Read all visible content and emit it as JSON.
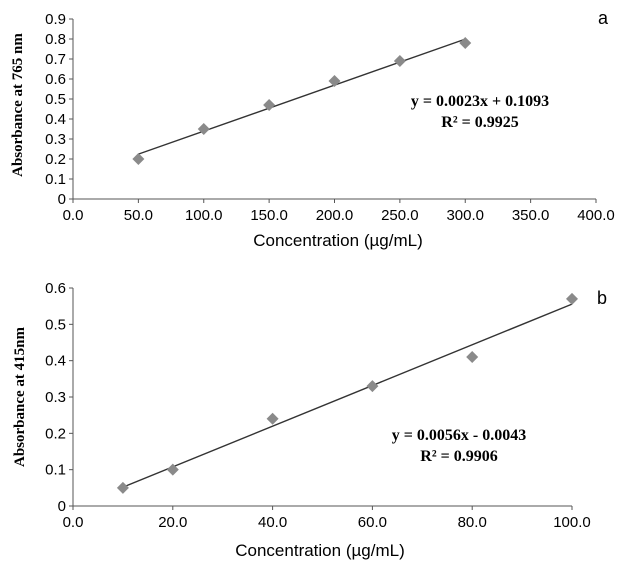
{
  "chart_data": [
    {
      "type": "scatter",
      "panel_label": "a",
      "xlabel": "Concentration (µg/mL)",
      "ylabel": "Absorbance at 765 nm",
      "xlim": [
        0,
        400
      ],
      "ylim": [
        0,
        0.9
      ],
      "x_ticks": [
        0,
        50,
        100,
        150,
        200,
        250,
        300,
        350,
        400
      ],
      "y_ticks": [
        0,
        0.1,
        0.2,
        0.3,
        0.4,
        0.5,
        0.6,
        0.7,
        0.8,
        0.9
      ],
      "x_tick_labels": [
        "0.0",
        "50.0",
        "100.0",
        "150.0",
        "200.0",
        "250.0",
        "300.0",
        "350.0",
        "400.0"
      ],
      "y_tick_labels": [
        "0",
        "0.1",
        "0.2",
        "0.3",
        "0.4",
        "0.5",
        "0.6",
        "0.7",
        "0.8",
        "0.9"
      ],
      "points": [
        {
          "x": 50,
          "y": 0.2
        },
        {
          "x": 100,
          "y": 0.35
        },
        {
          "x": 150,
          "y": 0.47
        },
        {
          "x": 200,
          "y": 0.59
        },
        {
          "x": 250,
          "y": 0.69
        },
        {
          "x": 300,
          "y": 0.78
        }
      ],
      "trendline": {
        "slope": 0.0023,
        "intercept": 0.1093,
        "x_range": [
          50,
          300
        ]
      },
      "equation": "y = 0.0023x + 0.1093",
      "r_squared": "R² = 0.9925",
      "grid": false,
      "marker_color": "#8a8a8a",
      "line_color": "#333333"
    },
    {
      "type": "scatter",
      "panel_label": "b",
      "xlabel": "Concentration (µg/mL)",
      "ylabel": "Absorbance at 415nm",
      "xlim": [
        0,
        100
      ],
      "ylim": [
        0,
        0.6
      ],
      "x_ticks": [
        0,
        20,
        40,
        60,
        80,
        100
      ],
      "y_ticks": [
        0,
        0.1,
        0.2,
        0.3,
        0.4,
        0.5,
        0.6
      ],
      "x_tick_labels": [
        "0.0",
        "20.0",
        "40.0",
        "60.0",
        "80.0",
        "100.0"
      ],
      "y_tick_labels": [
        "0",
        "0.1",
        "0.2",
        "0.3",
        "0.4",
        "0.5",
        "0.6"
      ],
      "points": [
        {
          "x": 10,
          "y": 0.05
        },
        {
          "x": 20,
          "y": 0.1
        },
        {
          "x": 40,
          "y": 0.24
        },
        {
          "x": 60,
          "y": 0.33
        },
        {
          "x": 80,
          "y": 0.41
        },
        {
          "x": 100,
          "y": 0.57
        }
      ],
      "trendline": {
        "slope": 0.0056,
        "intercept": -0.0043,
        "x_range": [
          10,
          100
        ]
      },
      "equation": "y = 0.0056x - 0.0043",
      "r_squared": "R² = 0.9906",
      "grid": false,
      "marker_color": "#8a8a8a",
      "line_color": "#333333"
    }
  ]
}
